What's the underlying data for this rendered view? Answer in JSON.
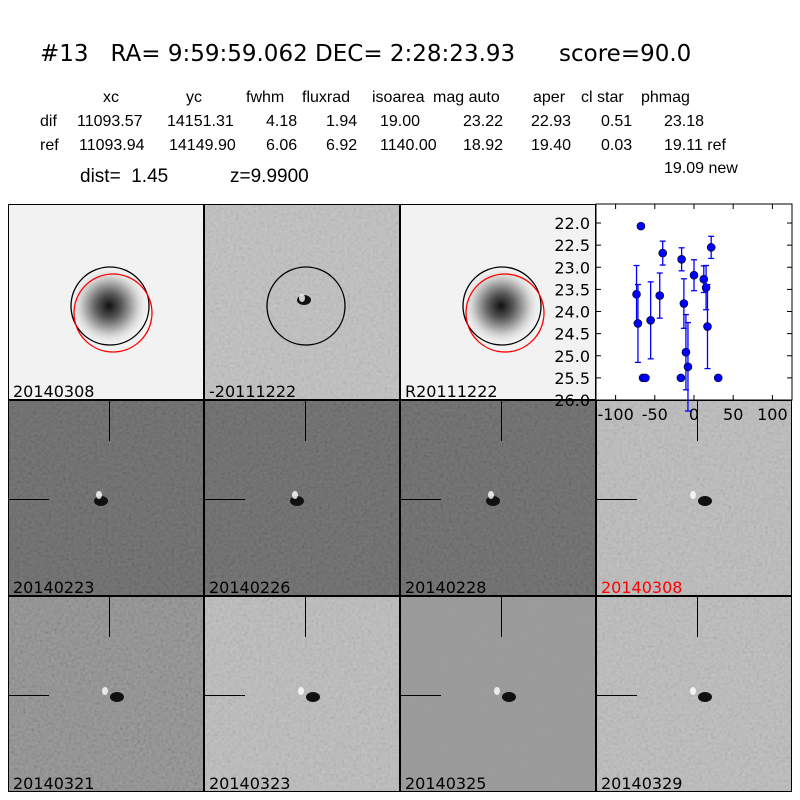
{
  "header": {
    "title": "#13   RA= 9:59:59.062 DEC= 2:28:23.93      score=90.0",
    "columns": [
      "xc",
      "yc",
      "fwhm",
      "fluxrad",
      "isoarea",
      "mag auto",
      "aper",
      "cl star",
      "phmag"
    ],
    "rows": [
      {
        "label": "dif",
        "values": [
          "11093.57",
          "14151.31",
          "4.18",
          "1.94",
          "19.00",
          "23.22",
          "22.93",
          "0.51",
          "23.18"
        ]
      },
      {
        "label": "ref",
        "values": [
          "11093.94",
          "14149.90",
          "6.06",
          "6.92",
          "1140.00",
          "18.92",
          "19.40",
          "0.03",
          "19.11 ref"
        ]
      }
    ],
    "extra_phmag": "19.09 new",
    "dist": "dist=  1.45",
    "z": "z=9.9900"
  },
  "panels": [
    {
      "label": "20140308",
      "style": "ref"
    },
    {
      "label": "-20111222",
      "style": "diff"
    },
    {
      "label": "R20111222",
      "style": "ref"
    },
    {
      "label": "20140223",
      "style": "dark"
    },
    {
      "label": "20140226",
      "style": "dark"
    },
    {
      "label": "20140228",
      "style": "dark"
    },
    {
      "label": "20140308",
      "style": "light",
      "label_color": "#ff0000"
    },
    {
      "label": "20140321",
      "style": "noisy"
    },
    {
      "label": "20140323",
      "style": "light"
    },
    {
      "label": "20140325",
      "style": "smooth"
    },
    {
      "label": "20140329",
      "style": "light"
    }
  ],
  "chart_data": {
    "type": "scatter",
    "xlim": [
      -125,
      125
    ],
    "ylim": [
      26.0,
      21.57
    ],
    "y_inverted": true,
    "xticks": [
      -100,
      -50,
      0,
      50,
      100
    ],
    "yticks": [
      "22.0",
      "22.5",
      "23.0",
      "23.5",
      "24.0",
      "24.5",
      "25.0",
      "25.5",
      "26.0"
    ],
    "marker_color": "#0000ff",
    "points": [
      {
        "x": -67.7,
        "y": 22.07,
        "err": 0.05
      },
      {
        "x": -73.3,
        "y": 23.61,
        "err": 0.65
      },
      {
        "x": -71.5,
        "y": 24.27,
        "err": 0.88
      },
      {
        "x": -65.0,
        "y": 25.5,
        "err": 0.03
      },
      {
        "x": -62.0,
        "y": 25.5,
        "err": 0.03
      },
      {
        "x": -55.3,
        "y": 24.2,
        "err": 0.87
      },
      {
        "x": -43.7,
        "y": 23.64,
        "err": 0.51
      },
      {
        "x": -39.9,
        "y": 22.68,
        "err": 0.27
      },
      {
        "x": -15.8,
        "y": 22.82,
        "err": 0.26
      },
      {
        "x": -16.7,
        "y": 25.5,
        "err": 0.03
      },
      {
        "x": -12.9,
        "y": 23.82,
        "err": 0.56
      },
      {
        "x": -10.3,
        "y": 24.92,
        "err": 0.85
      },
      {
        "x": -7.7,
        "y": 25.25,
        "err": 1.0
      },
      {
        "x": 0.0,
        "y": 23.18,
        "err": 0.35
      },
      {
        "x": 12.5,
        "y": 23.27,
        "err": 0.3
      },
      {
        "x": 15.4,
        "y": 23.46,
        "err": 0.5
      },
      {
        "x": 17.2,
        "y": 24.34,
        "err": 0.95
      },
      {
        "x": 21.9,
        "y": 22.55,
        "err": 0.25
      },
      {
        "x": 30.9,
        "y": 25.5,
        "err": 0.03
      }
    ]
  }
}
